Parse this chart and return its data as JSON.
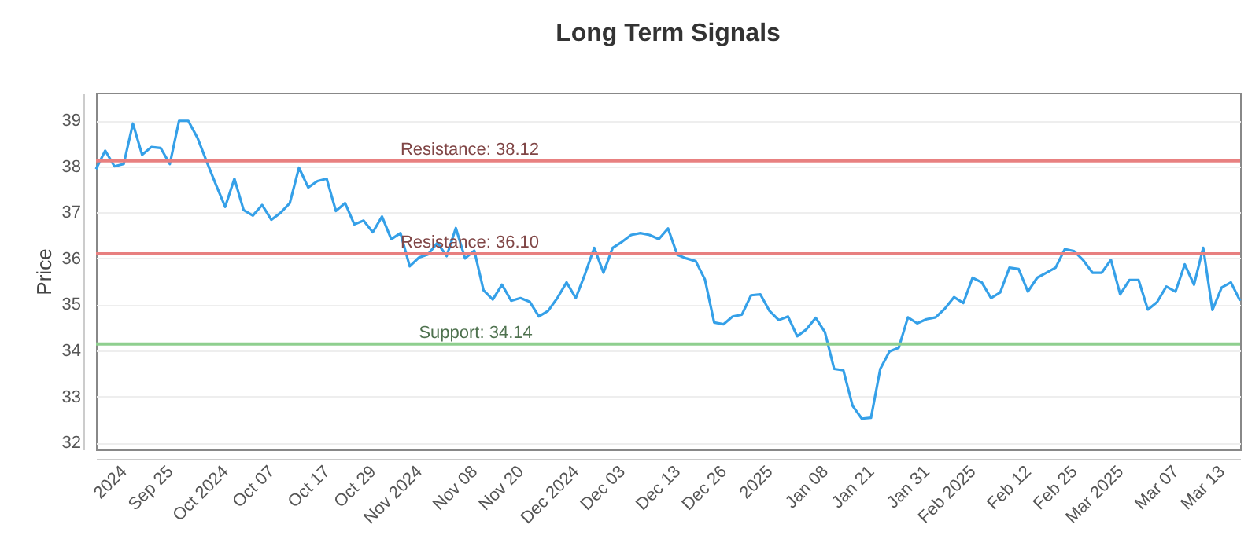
{
  "chart_data": {
    "type": "line",
    "title": "Long Term Signals",
    "ylabel": "Price",
    "categories": [
      null,
      null,
      null,
      "2024",
      null,
      null,
      null,
      null,
      "Sep 25",
      null,
      null,
      null,
      null,
      null,
      "Oct 2024",
      null,
      null,
      null,
      null,
      "Oct 07",
      null,
      null,
      null,
      null,
      null,
      "Oct 17",
      null,
      null,
      null,
      null,
      "Oct 29",
      null,
      null,
      null,
      null,
      "Nov 2024",
      null,
      null,
      null,
      null,
      null,
      "Nov 08",
      null,
      null,
      null,
      null,
      "Nov 20",
      null,
      null,
      null,
      null,
      null,
      "Dec 2024",
      null,
      null,
      null,
      null,
      "Dec 03",
      null,
      null,
      null,
      null,
      null,
      "Dec 13",
      null,
      null,
      null,
      null,
      "Dec 26",
      null,
      null,
      null,
      null,
      "2025",
      null,
      null,
      null,
      null,
      null,
      "Jan 08",
      null,
      null,
      null,
      null,
      "Jan 21",
      null,
      null,
      null,
      null,
      null,
      "Jan 31",
      null,
      null,
      null,
      null,
      "Feb 2025",
      null,
      null,
      null,
      null,
      null,
      "Feb 12",
      null,
      null,
      null,
      null,
      "Feb 25",
      null,
      null,
      null,
      null,
      "Mar 2025",
      null,
      null,
      null,
      null,
      null,
      "Mar 07",
      null,
      null,
      null,
      null,
      "Mar 13",
      null,
      null
    ],
    "series": [
      {
        "color": "#35a0e8",
        "values": [
          37.94,
          38.34,
          38.0,
          38.05,
          38.93,
          38.25,
          38.42,
          38.4,
          38.05,
          38.99,
          38.99,
          38.62,
          38.1,
          37.6,
          37.12,
          37.73,
          37.05,
          36.93,
          37.16,
          36.84,
          36.99,
          37.2,
          37.97,
          37.54,
          37.68,
          37.73,
          37.03,
          37.2,
          36.74,
          36.82,
          36.57,
          36.91,
          36.42,
          36.55,
          35.83,
          36.02,
          36.09,
          36.34,
          36.05,
          36.66,
          36.0,
          36.17,
          35.31,
          35.11,
          35.43,
          35.08,
          35.14,
          35.06,
          34.74,
          34.86,
          35.14,
          35.48,
          35.14,
          35.66,
          36.23,
          35.69,
          36.23,
          36.36,
          36.51,
          36.55,
          36.51,
          36.42,
          36.65,
          36.08,
          36.0,
          35.94,
          35.54,
          34.61,
          34.57,
          34.74,
          34.78,
          35.2,
          35.22,
          34.86,
          34.66,
          34.74,
          34.31,
          34.46,
          34.71,
          34.4,
          33.6,
          33.57,
          32.8,
          32.52,
          32.54,
          33.6,
          33.98,
          34.06,
          34.72,
          34.59,
          34.68,
          34.72,
          34.91,
          35.16,
          35.03,
          35.58,
          35.48,
          35.14,
          35.26,
          35.8,
          35.77,
          35.28,
          35.58,
          35.69,
          35.8,
          36.2,
          36.16,
          35.96,
          35.69,
          35.69,
          35.97,
          35.22,
          35.53,
          35.53,
          34.89,
          35.05,
          35.39,
          35.28,
          35.87,
          35.43,
          36.23,
          34.88,
          35.37,
          35.48,
          35.08
        ]
      }
    ],
    "ylim": [
      31.85,
      39.6
    ],
    "yticks": [
      32,
      33,
      34,
      35,
      36,
      37,
      38,
      39
    ],
    "grid": "y",
    "marker": "none",
    "line_style": "solid",
    "ref_lines": [
      {
        "axis": "y",
        "value": 38.12,
        "label": "Resistance: 38.12",
        "color": "#e88080"
      },
      {
        "axis": "y",
        "value": 36.1,
        "label": "Resistance: 36.10",
        "color": "#e88080"
      },
      {
        "axis": "y",
        "value": 34.14,
        "label": "Support: 34.14",
        "color": "#8fcf8f"
      }
    ]
  }
}
